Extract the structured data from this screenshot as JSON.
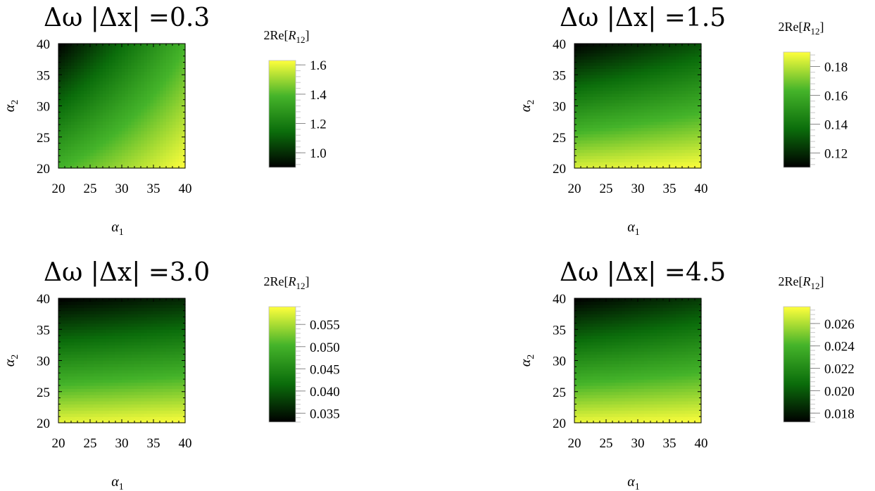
{
  "chart_data": [
    {
      "type": "heatmap",
      "title": "Δω |Δx| =0.3",
      "xlabel": "α",
      "xlabel_sub": "1",
      "ylabel": "α",
      "ylabel_sub": "2",
      "xlim": [
        20,
        40
      ],
      "ylim": [
        20,
        40
      ],
      "xticks": [
        "20",
        "25",
        "30",
        "35",
        "40"
      ],
      "yticks": [
        "20",
        "25",
        "30",
        "35",
        "40"
      ],
      "colorbar": {
        "label_prefix": "2Re[",
        "label_symbol": "R",
        "label_sub": "12",
        "label_suffix": "]",
        "range": [
          0.9,
          1.63
        ],
        "ticks": [
          1.0,
          1.2,
          1.4,
          1.6
        ],
        "tick_labels": [
          "1.0",
          "1.2",
          "1.4",
          "1.6"
        ]
      },
      "corner_values": {
        "x20_y20": 1.38,
        "x40_y20": 1.63,
        "x20_y40": 0.9,
        "x40_y40": 1.38
      },
      "colormap": [
        "#000000",
        "#0b6d0b",
        "#45b42a",
        "#ffff3c"
      ]
    },
    {
      "type": "heatmap",
      "title": "Δω |Δx| =1.5",
      "xlabel": "α",
      "xlabel_sub": "1",
      "ylabel": "α",
      "ylabel_sub": "2",
      "xlim": [
        20,
        40
      ],
      "ylim": [
        20,
        40
      ],
      "xticks": [
        "20",
        "25",
        "30",
        "35",
        "40"
      ],
      "yticks": [
        "20",
        "25",
        "30",
        "35",
        "40"
      ],
      "colorbar": {
        "label_prefix": "2Re[",
        "label_symbol": "R",
        "label_sub": "12",
        "label_suffix": "]",
        "range": [
          0.11,
          0.19
        ],
        "ticks": [
          0.12,
          0.14,
          0.16,
          0.18
        ],
        "tick_labels": [
          "0.12",
          "0.14",
          "0.16",
          "0.18"
        ]
      },
      "corner_values": {
        "x20_y20": 0.185,
        "x40_y20": 0.19,
        "x20_y40": 0.11,
        "x40_y40": 0.13
      },
      "colormap": [
        "#000000",
        "#0b6d0b",
        "#45b42a",
        "#ffff3c"
      ]
    },
    {
      "type": "heatmap",
      "title": "Δω |Δx| =3.0",
      "xlabel": "α",
      "xlabel_sub": "1",
      "ylabel": "α",
      "ylabel_sub": "2",
      "xlim": [
        20,
        40
      ],
      "ylim": [
        20,
        40
      ],
      "xticks": [
        "20",
        "25",
        "30",
        "35",
        "40"
      ],
      "yticks": [
        "20",
        "25",
        "30",
        "35",
        "40"
      ],
      "colorbar": {
        "label_prefix": "2Re[",
        "label_symbol": "R",
        "label_sub": "12",
        "label_suffix": "]",
        "range": [
          0.033,
          0.059
        ],
        "ticks": [
          0.035,
          0.04,
          0.045,
          0.05,
          0.055
        ],
        "tick_labels": [
          "0.035",
          "0.040",
          "0.045",
          "0.050",
          "0.055"
        ]
      },
      "corner_values": {
        "x20_y20": 0.058,
        "x40_y20": 0.059,
        "x20_y40": 0.033,
        "x40_y40": 0.036
      },
      "colormap": [
        "#000000",
        "#0b6d0b",
        "#45b42a",
        "#ffff3c"
      ]
    },
    {
      "type": "heatmap",
      "title": "Δω |Δx| =4.5",
      "xlabel": "α",
      "xlabel_sub": "1",
      "ylabel": "α",
      "ylabel_sub": "2",
      "xlim": [
        20,
        40
      ],
      "ylim": [
        20,
        40
      ],
      "xticks": [
        "20",
        "25",
        "30",
        "35",
        "40"
      ],
      "yticks": [
        "20",
        "25",
        "30",
        "35",
        "40"
      ],
      "colorbar": {
        "label_prefix": "2Re[",
        "label_symbol": "R",
        "label_sub": "12",
        "label_suffix": "]",
        "range": [
          0.0172,
          0.0275
        ],
        "ticks": [
          0.018,
          0.02,
          0.022,
          0.024,
          0.026
        ],
        "tick_labels": [
          "0.018",
          "0.020",
          "0.022",
          "0.024",
          "0.026"
        ]
      },
      "corner_values": {
        "x20_y20": 0.0272,
        "x40_y20": 0.0275,
        "x20_y40": 0.0172,
        "x40_y40": 0.019
      },
      "colormap": [
        "#000000",
        "#0b6d0b",
        "#45b42a",
        "#ffff3c"
      ]
    }
  ]
}
